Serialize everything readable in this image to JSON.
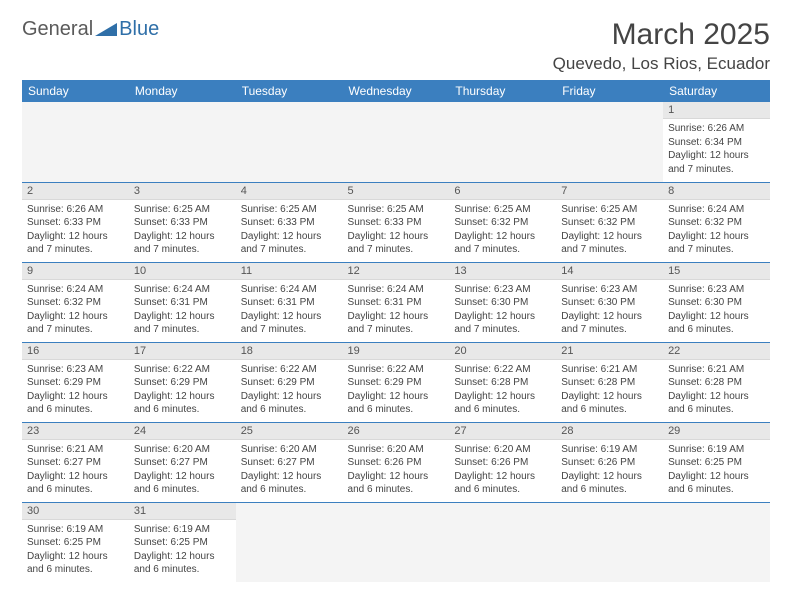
{
  "logo": {
    "general": "General",
    "blue": "Blue"
  },
  "title": "March 2025",
  "location": "Quevedo, Los Rios, Ecuador",
  "colors": {
    "header_bg": "#3b7fbf",
    "header_text": "#ffffff",
    "daynum_bg": "#e8e8e8",
    "border": "#3b7fbf",
    "text": "#444444",
    "logo_blue": "#2f6fa8",
    "logo_gray": "#5a5a5a"
  },
  "weekdays": [
    "Sunday",
    "Monday",
    "Tuesday",
    "Wednesday",
    "Thursday",
    "Friday",
    "Saturday"
  ],
  "labels": {
    "sunrise": "Sunrise:",
    "sunset": "Sunset:",
    "daylight": "Daylight:"
  },
  "first_weekday_index": 6,
  "days": [
    {
      "n": 1,
      "sunrise": "6:26 AM",
      "sunset": "6:34 PM",
      "daylight": "12 hours and 7 minutes."
    },
    {
      "n": 2,
      "sunrise": "6:26 AM",
      "sunset": "6:33 PM",
      "daylight": "12 hours and 7 minutes."
    },
    {
      "n": 3,
      "sunrise": "6:25 AM",
      "sunset": "6:33 PM",
      "daylight": "12 hours and 7 minutes."
    },
    {
      "n": 4,
      "sunrise": "6:25 AM",
      "sunset": "6:33 PM",
      "daylight": "12 hours and 7 minutes."
    },
    {
      "n": 5,
      "sunrise": "6:25 AM",
      "sunset": "6:33 PM",
      "daylight": "12 hours and 7 minutes."
    },
    {
      "n": 6,
      "sunrise": "6:25 AM",
      "sunset": "6:32 PM",
      "daylight": "12 hours and 7 minutes."
    },
    {
      "n": 7,
      "sunrise": "6:25 AM",
      "sunset": "6:32 PM",
      "daylight": "12 hours and 7 minutes."
    },
    {
      "n": 8,
      "sunrise": "6:24 AM",
      "sunset": "6:32 PM",
      "daylight": "12 hours and 7 minutes."
    },
    {
      "n": 9,
      "sunrise": "6:24 AM",
      "sunset": "6:32 PM",
      "daylight": "12 hours and 7 minutes."
    },
    {
      "n": 10,
      "sunrise": "6:24 AM",
      "sunset": "6:31 PM",
      "daylight": "12 hours and 7 minutes."
    },
    {
      "n": 11,
      "sunrise": "6:24 AM",
      "sunset": "6:31 PM",
      "daylight": "12 hours and 7 minutes."
    },
    {
      "n": 12,
      "sunrise": "6:24 AM",
      "sunset": "6:31 PM",
      "daylight": "12 hours and 7 minutes."
    },
    {
      "n": 13,
      "sunrise": "6:23 AM",
      "sunset": "6:30 PM",
      "daylight": "12 hours and 7 minutes."
    },
    {
      "n": 14,
      "sunrise": "6:23 AM",
      "sunset": "6:30 PM",
      "daylight": "12 hours and 7 minutes."
    },
    {
      "n": 15,
      "sunrise": "6:23 AM",
      "sunset": "6:30 PM",
      "daylight": "12 hours and 6 minutes."
    },
    {
      "n": 16,
      "sunrise": "6:23 AM",
      "sunset": "6:29 PM",
      "daylight": "12 hours and 6 minutes."
    },
    {
      "n": 17,
      "sunrise": "6:22 AM",
      "sunset": "6:29 PM",
      "daylight": "12 hours and 6 minutes."
    },
    {
      "n": 18,
      "sunrise": "6:22 AM",
      "sunset": "6:29 PM",
      "daylight": "12 hours and 6 minutes."
    },
    {
      "n": 19,
      "sunrise": "6:22 AM",
      "sunset": "6:29 PM",
      "daylight": "12 hours and 6 minutes."
    },
    {
      "n": 20,
      "sunrise": "6:22 AM",
      "sunset": "6:28 PM",
      "daylight": "12 hours and 6 minutes."
    },
    {
      "n": 21,
      "sunrise": "6:21 AM",
      "sunset": "6:28 PM",
      "daylight": "12 hours and 6 minutes."
    },
    {
      "n": 22,
      "sunrise": "6:21 AM",
      "sunset": "6:28 PM",
      "daylight": "12 hours and 6 minutes."
    },
    {
      "n": 23,
      "sunrise": "6:21 AM",
      "sunset": "6:27 PM",
      "daylight": "12 hours and 6 minutes."
    },
    {
      "n": 24,
      "sunrise": "6:20 AM",
      "sunset": "6:27 PM",
      "daylight": "12 hours and 6 minutes."
    },
    {
      "n": 25,
      "sunrise": "6:20 AM",
      "sunset": "6:27 PM",
      "daylight": "12 hours and 6 minutes."
    },
    {
      "n": 26,
      "sunrise": "6:20 AM",
      "sunset": "6:26 PM",
      "daylight": "12 hours and 6 minutes."
    },
    {
      "n": 27,
      "sunrise": "6:20 AM",
      "sunset": "6:26 PM",
      "daylight": "12 hours and 6 minutes."
    },
    {
      "n": 28,
      "sunrise": "6:19 AM",
      "sunset": "6:26 PM",
      "daylight": "12 hours and 6 minutes."
    },
    {
      "n": 29,
      "sunrise": "6:19 AM",
      "sunset": "6:25 PM",
      "daylight": "12 hours and 6 minutes."
    },
    {
      "n": 30,
      "sunrise": "6:19 AM",
      "sunset": "6:25 PM",
      "daylight": "12 hours and 6 minutes."
    },
    {
      "n": 31,
      "sunrise": "6:19 AM",
      "sunset": "6:25 PM",
      "daylight": "12 hours and 6 minutes."
    }
  ]
}
